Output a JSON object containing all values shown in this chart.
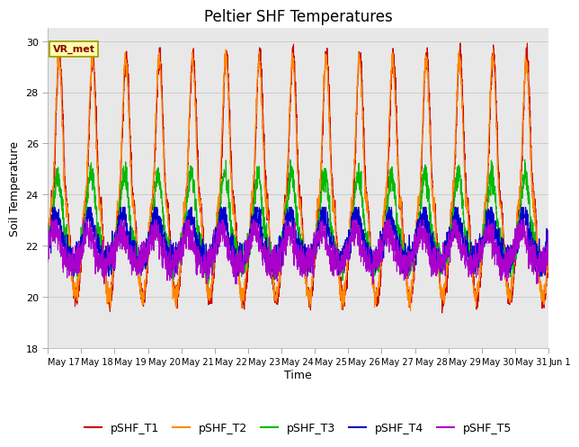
{
  "title": "Peltier SHF Temperatures",
  "ylabel": "Soil Temperature",
  "xlabel": "Time",
  "annotation": "VR_met",
  "ylim": [
    18,
    30.5
  ],
  "xlim_days": 15,
  "plot_bg_color": "#e8e8e8",
  "fig_bg_color": "#ffffff",
  "series": [
    "pSHF_T1",
    "pSHF_T2",
    "pSHF_T3",
    "pSHF_T4",
    "pSHF_T5"
  ],
  "colors": [
    "#cc0000",
    "#ff8800",
    "#00bb00",
    "#0000cc",
    "#aa00cc"
  ],
  "xtick_labels": [
    "May 17",
    "May 18",
    "May 19",
    "May 20",
    "May 21",
    "May 22",
    "May 23",
    "May 24",
    "May 25",
    "May 26",
    "May 27",
    "May 28",
    "May 29",
    "May 30",
    "May 31",
    "Jun 1"
  ],
  "ytick_values": [
    18,
    20,
    22,
    24,
    26,
    28,
    30
  ],
  "grid_color": "#cccccc",
  "title_fontsize": 12,
  "axis_fontsize": 9,
  "tick_fontsize": 8,
  "legend_fontsize": 9,
  "annotation_fontsize": 8,
  "linewidth": 0.8
}
